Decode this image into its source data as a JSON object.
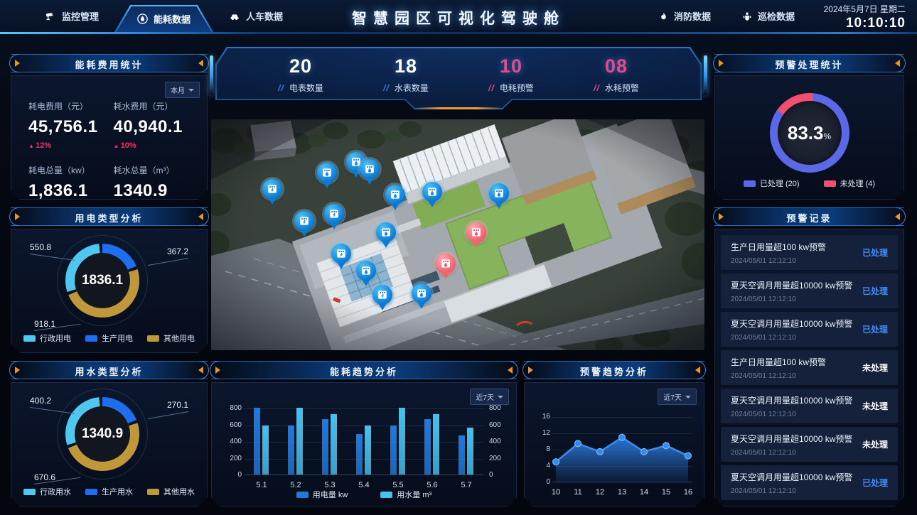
{
  "header": {
    "title": "智慧园区可视化驾驶舱",
    "date": "2024年5月7日 星期二",
    "time": "10:10:10",
    "nav": [
      {
        "label": "监控管理",
        "icon": "camera-icon",
        "active": false
      },
      {
        "label": "能耗数据",
        "icon": "energy-drop-icon",
        "active": true
      },
      {
        "label": "人车数据",
        "icon": "car-icon",
        "active": false
      },
      {
        "label": "消防数据",
        "icon": "fire-icon",
        "active": false
      },
      {
        "label": "巡检数据",
        "icon": "patrol-icon",
        "active": false
      }
    ]
  },
  "stats_bar": [
    {
      "value": "20",
      "label": "电表数量",
      "value_color": "#ffffff",
      "slash_color": "#2f7ef0"
    },
    {
      "value": "18",
      "label": "水表数量",
      "value_color": "#ffffff",
      "slash_color": "#2f7ef0"
    },
    {
      "value": "10",
      "label": "电耗预警",
      "value_color": "#e8478f",
      "slash_color": "#e8478f"
    },
    {
      "value": "08",
      "label": "水耗预警",
      "value_color": "#e8478f",
      "slash_color": "#e8478f"
    }
  ],
  "panels": {
    "energy_cost": {
      "title": "能耗费用统计",
      "period": "本月",
      "metrics": [
        {
          "label": "耗电费用（元）",
          "value": "45,756.1",
          "delta": "12%"
        },
        {
          "label": "耗水费用（元）",
          "value": "40,940.1",
          "delta": "10%"
        },
        {
          "label": "耗电总量（kw）",
          "value": "1,836.1"
        },
        {
          "label": "耗水总量（m³）",
          "value": "1340.9"
        }
      ]
    },
    "elec_type": {
      "title": "用电类型分析",
      "chart_data": {
        "type": "pie",
        "total": "1836.1",
        "segments": [
          {
            "name": "行政用电",
            "value": 550.8,
            "color": "#4fc8f0"
          },
          {
            "name": "生产用电",
            "value": 367.2,
            "color": "#1e6ef0"
          },
          {
            "name": "其他用电",
            "value": 918.1,
            "color": "#c0983a"
          }
        ]
      }
    },
    "water_type": {
      "title": "用水类型分析",
      "chart_data": {
        "type": "pie",
        "total": "1340.9",
        "segments": [
          {
            "name": "行政用水",
            "value": 400.2,
            "color": "#4fc8f0"
          },
          {
            "name": "生产用水",
            "value": 270.1,
            "color": "#1e6ef0"
          },
          {
            "name": "其他用水",
            "value": 670.6,
            "color": "#c0983a"
          }
        ]
      }
    },
    "alarm_stats": {
      "title": "预警处理统计",
      "chart_data": {
        "type": "pie",
        "percent": "83.3",
        "unit": "%",
        "segments": [
          {
            "name": "已处理 (20)",
            "value": 83.3,
            "color": "#5b68e8"
          },
          {
            "name": "未处理 (4)",
            "value": 16.7,
            "color": "#f0506e"
          }
        ]
      }
    },
    "alarm_records": {
      "title": "预警记录",
      "items": [
        {
          "text": "生产日用量超100 kw预警",
          "time": "2024/05/01 12:12:10",
          "status": "已处理",
          "resolved": true
        },
        {
          "text": "夏天空调月用量超10000 kw预警",
          "time": "2024/05/01 12:12:10",
          "status": "已处理",
          "resolved": true
        },
        {
          "text": "夏天空调月用量超10000 kw预警",
          "time": "2024/05/01 12:12:10",
          "status": "已处理",
          "resolved": true
        },
        {
          "text": "生产日用量超100 kw预警",
          "time": "2024/05/01 12:12:10",
          "status": "未处理",
          "resolved": false
        },
        {
          "text": "夏天空调月用量超10000 kw预警",
          "time": "2024/05/01 12:12:10",
          "status": "未处理",
          "resolved": false
        },
        {
          "text": "夏天空调月用量超10000 kw预警",
          "time": "2024/05/01 12:12:10",
          "status": "未处理",
          "resolved": false
        },
        {
          "text": "夏天空调月用量超10000 kw预警",
          "time": "2024/05/01 12:12:10",
          "status": "已处理",
          "resolved": true
        }
      ]
    },
    "energy_trend": {
      "title": "能耗趋势分析",
      "period": "近7天",
      "chart_data": {
        "type": "bar",
        "categories": [
          "5.1",
          "5.2",
          "5.3",
          "5.4",
          "5.5",
          "5.6",
          "5.7"
        ],
        "series": [
          {
            "name": "用电量 kw",
            "color": "#1f7ae0",
            "values": [
              820,
              600,
              680,
              500,
              600,
              680,
              480
            ]
          },
          {
            "name": "用水量 m³",
            "color": "#46c2f0",
            "values": [
              600,
              820,
              740,
              600,
              820,
              740,
              580
            ]
          }
        ],
        "y_ticks": [
          0,
          200,
          400,
          600,
          800
        ],
        "ylim": [
          0,
          820
        ]
      }
    },
    "alarm_trend": {
      "title": "预警趋势分析",
      "period": "近7天",
      "chart_data": {
        "type": "line",
        "x": [
          10,
          11,
          12,
          13,
          14,
          15,
          16
        ],
        "values": [
          5,
          9.5,
          7.5,
          11,
          7.5,
          9,
          6.5
        ],
        "y_ticks": [
          0,
          4,
          8,
          12,
          16
        ],
        "ylim": [
          0,
          16
        ],
        "color": "#2f86f0"
      }
    }
  },
  "map": {
    "markers": [
      {
        "type": "electric-meter",
        "x": 12.4,
        "y": 30
      },
      {
        "type": "water-meter",
        "x": 23.5,
        "y": 23
      },
      {
        "type": "water-meter",
        "x": 29.4,
        "y": 18.5
      },
      {
        "type": "water-meter",
        "x": 32.1,
        "y": 21.5
      },
      {
        "type": "water-meter",
        "x": 37.3,
        "y": 32.5
      },
      {
        "type": "water-meter",
        "x": 44.8,
        "y": 31.5
      },
      {
        "type": "electric-meter",
        "x": 18.9,
        "y": 44
      },
      {
        "type": "electric-meter",
        "x": 24.9,
        "y": 41
      },
      {
        "type": "water-meter",
        "x": 35.4,
        "y": 49
      },
      {
        "type": "electric-meter",
        "x": 26.4,
        "y": 58
      },
      {
        "type": "water-meter",
        "x": 31.4,
        "y": 65.5
      },
      {
        "type": "electric-meter",
        "x": 34.7,
        "y": 76
      },
      {
        "type": "water-meter",
        "x": 42.7,
        "y": 75.5
      },
      {
        "type": "water-meter",
        "x": 58.4,
        "y": 32
      },
      {
        "type": "water-warning",
        "x": 53.7,
        "y": 49
      },
      {
        "type": "water-warning",
        "x": 47.6,
        "y": 62.5
      }
    ]
  }
}
